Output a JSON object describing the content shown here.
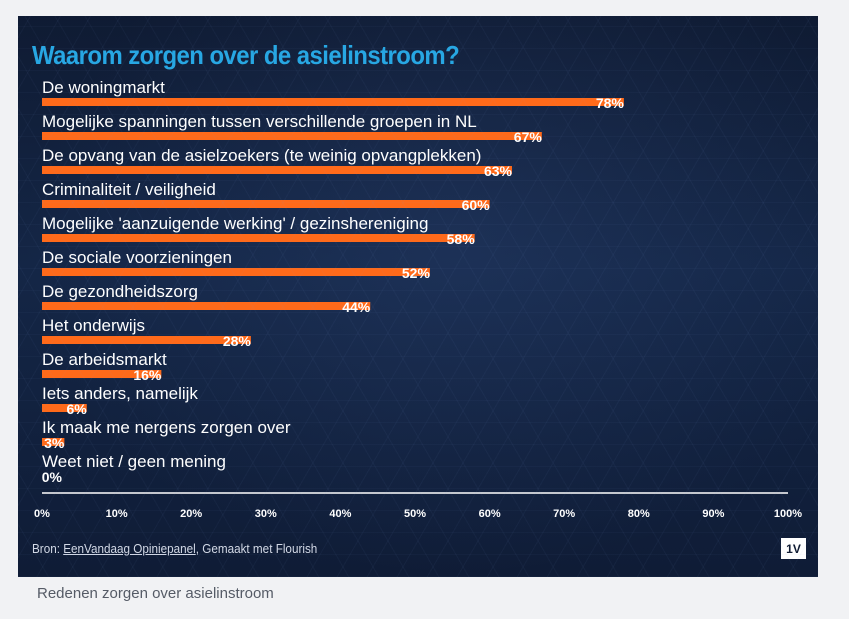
{
  "caption": "Redenen zorgen over asielinstroom",
  "source": {
    "prefix": "Bron: ",
    "link_text": "EenVandaag Opiniepanel",
    "suffix": ", Gemaakt met Flourish"
  },
  "badge": "1V",
  "colors": {
    "bar": "#ff6a1a",
    "title": "#27a7e3",
    "background": "#142646"
  },
  "chart_data": {
    "type": "bar",
    "orientation": "horizontal",
    "title": "Waarom zorgen over de asielinstroom?",
    "categories": [
      "De woningmarkt",
      "Mogelijke spanningen tussen verschillende groepen in NL",
      "De opvang van de asielzoekers (te weinig opvangplekken)",
      "Criminaliteit / veiligheid",
      "Mogelijke 'aanzuigende werking' / gezinshereniging",
      "De sociale voorzieningen",
      "De gezondheidszorg",
      "Het onderwijs",
      "De arbeidsmarkt",
      "Iets anders, namelijk",
      "Ik maak me nergens zorgen over",
      "Weet niet / geen mening"
    ],
    "values": [
      78,
      67,
      63,
      60,
      58,
      52,
      44,
      28,
      16,
      6,
      3,
      0
    ],
    "value_labels": [
      "78%",
      "67%",
      "63%",
      "60%",
      "58%",
      "52%",
      "44%",
      "28%",
      "16%",
      "6%",
      "3%",
      "0%"
    ],
    "xlim": [
      0,
      100
    ],
    "xticks": [
      "0%",
      "10%",
      "20%",
      "30%",
      "40%",
      "50%",
      "60%",
      "70%",
      "80%",
      "90%",
      "100%"
    ],
    "grid": false
  }
}
